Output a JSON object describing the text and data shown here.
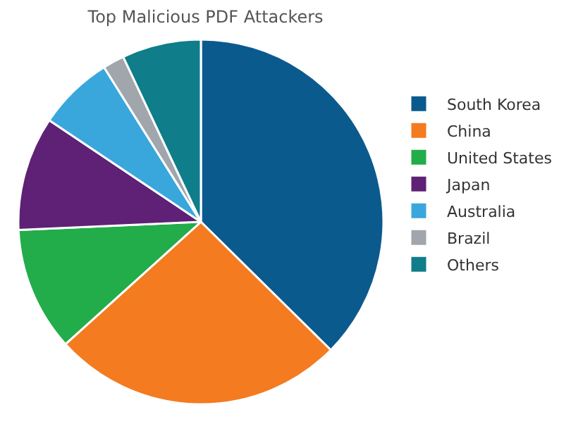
{
  "chart_data": {
    "type": "pie",
    "title": "Top Malicious PDF Attackers",
    "categories": [
      "South Korea",
      "China",
      "United States",
      "Japan",
      "Australia",
      "Brazil",
      "Others"
    ],
    "values": [
      37.4,
      25.9,
      11.0,
      10.1,
      6.7,
      1.9,
      7.0
    ],
    "colors": [
      "#0b5a8e",
      "#f47b20",
      "#22ac4a",
      "#5e2175",
      "#3aa7dc",
      "#a0a6ab",
      "#0f7d8a"
    ],
    "legend": "right"
  }
}
